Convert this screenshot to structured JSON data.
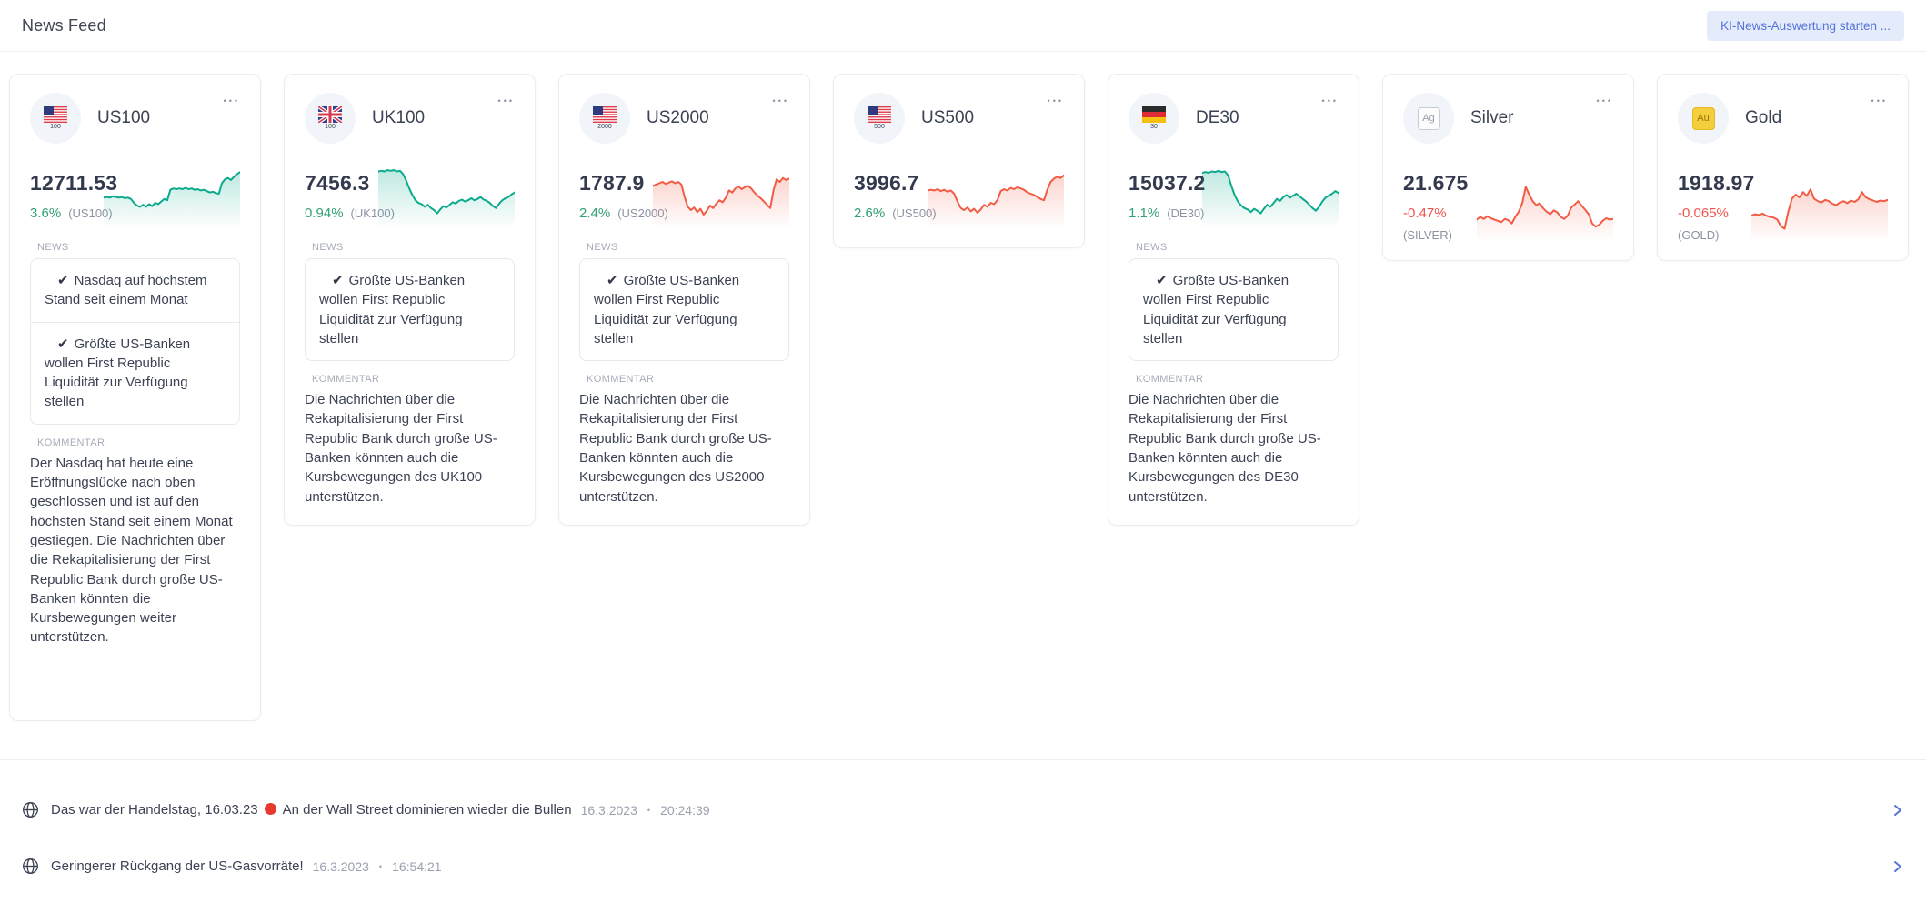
{
  "header": {
    "title": "News Feed",
    "action_button": "KI-News-Auswertung starten ..."
  },
  "labels": {
    "news": "NEWS",
    "kommentar": "KOMMENTAR"
  },
  "colors": {
    "green_line": "#0caa8c",
    "red_line": "#f25c45",
    "green_text": "#33a071",
    "red_text": "#f0544f",
    "accent_blue": "#5673d8",
    "red_dot": "#e8392e"
  },
  "cards": [
    {
      "name": "US100",
      "icon": "us",
      "icon_sub": "100",
      "price": "12711.53",
      "change": "3.6%",
      "direction": "up",
      "symbol": "(US100)",
      "symbol_layout": "inline",
      "spark": 0,
      "news": [
        "Nasdaq auf höchstem Stand seit einem Monat",
        "Größte US-Banken wollen First Republic Liquidität zur Verfügung stellen"
      ],
      "comment": "Der Nasdaq hat heute eine Eröffnungslücke nach oben geschlossen und ist auf den höchsten Stand seit einem Monat gestiegen. Die Nachrichten über die Rekapitalisierung der First Republic Bank durch große US-Banken könnten die Kursbewegungen weiter unterstützen.",
      "extra_space": true
    },
    {
      "name": "UK100",
      "icon": "uk",
      "icon_sub": "100",
      "price": "7456.3",
      "change": "0.94%",
      "direction": "up",
      "symbol": "(UK100)",
      "symbol_layout": "inline",
      "spark": 1,
      "news": [
        "Größte US-Banken wollen First Republic Liquidität zur Verfügung stellen"
      ],
      "comment": "Die Nachrichten über die Rekapitalisierung der First Republic Bank durch große US-Banken könnten auch die Kursbewegungen des UK100 unterstützen.",
      "extra_space": false
    },
    {
      "name": "US2000",
      "icon": "us",
      "icon_sub": "2000",
      "price": "1787.9",
      "change": "2.4%",
      "direction": "up",
      "symbol": "(US2000)",
      "symbol_layout": "inline",
      "spark": 2,
      "news": [
        "Größte US-Banken wollen First Republic Liquidität zur Verfügung stellen"
      ],
      "comment": "Die Nachrichten über die Rekapitalisierung der First Republic Bank durch große US-Banken könnten auch die Kursbewegungen des US2000 unterstützen.",
      "extra_space": false
    },
    {
      "name": "US500",
      "icon": "us",
      "icon_sub": "500",
      "price": "3996.7",
      "change": "2.6%",
      "direction": "up",
      "symbol": "(US500)",
      "symbol_layout": "inline",
      "spark": 3,
      "news": [],
      "comment": "",
      "extra_space": false
    },
    {
      "name": "DE30",
      "icon": "de",
      "icon_sub": "30",
      "price": "15037.2",
      "change": "1.1%",
      "direction": "up",
      "symbol": "(DE30)",
      "symbol_layout": "inline",
      "spark": 4,
      "news": [
        "Größte US-Banken wollen First Republic Liquidität zur Verfügung stellen"
      ],
      "comment": "Die Nachrichten über die Rekapitalisierung der First Republic Bank durch große US-Banken könnten auch die Kursbewegungen des DE30 unterstützen.",
      "extra_space": false
    },
    {
      "name": "Silver",
      "icon": "ag",
      "icon_sub": "",
      "price": "21.675",
      "change": "-0.47%",
      "direction": "down",
      "symbol": "(SILVER)",
      "symbol_layout": "stacked",
      "spark": 5,
      "news": [],
      "comment": "",
      "extra_space": false
    },
    {
      "name": "Gold",
      "icon": "au",
      "icon_sub": "",
      "price": "1918.97",
      "change": "-0.065%",
      "direction": "down",
      "symbol": "(GOLD)",
      "symbol_layout": "stacked",
      "spark": 6,
      "news": [],
      "comment": "",
      "extra_space": false
    }
  ],
  "ticker": [
    {
      "text_before": "Das war der Handelstag, 16.03.23",
      "red_dot": true,
      "text_after": "An der Wall Street dominieren wieder die Bullen",
      "date": "16.3.2023",
      "separator": "•",
      "time": "20:24:39"
    },
    {
      "text_before": "Geringerer Rückgang der US-Gasvorräte!",
      "red_dot": false,
      "text_after": "",
      "date": "16.3.2023",
      "separator": "•",
      "time": "16:54:21"
    }
  ],
  "chart_data": [
    {
      "type": "line",
      "name": "US100 sparkline",
      "color": "#0caa8c",
      "ylim": [
        0,
        100
      ],
      "points": [
        44,
        45,
        44,
        46,
        45,
        44,
        45,
        43,
        44,
        42,
        36,
        32,
        30,
        33,
        30,
        34,
        31,
        36,
        34,
        38,
        42,
        40,
        56,
        58,
        57,
        58,
        57,
        59,
        57,
        58,
        56,
        57,
        55,
        56,
        54,
        52,
        53,
        51,
        50,
        66,
        72,
        74,
        71,
        76,
        80,
        83
      ]
    },
    {
      "type": "line",
      "name": "UK100 sparkline",
      "color": "#0caa8c",
      "ylim": [
        0,
        100
      ],
      "points": [
        84,
        85,
        84,
        86,
        85,
        86,
        84,
        85,
        80,
        70,
        58,
        48,
        40,
        36,
        34,
        30,
        33,
        28,
        25,
        20,
        26,
        31,
        29,
        33,
        37,
        35,
        39,
        41,
        38,
        40,
        43,
        40,
        42,
        45,
        41,
        39,
        36,
        31,
        28,
        35,
        40,
        43,
        45,
        49,
        52
      ]
    },
    {
      "type": "line",
      "name": "US2000 sparkline",
      "color": "#f25c45",
      "ylim": [
        0,
        100
      ],
      "points": [
        62,
        64,
        66,
        68,
        65,
        67,
        69,
        66,
        68,
        64,
        45,
        30,
        25,
        29,
        22,
        27,
        18,
        24,
        32,
        28,
        35,
        40,
        37,
        44,
        55,
        52,
        58,
        61,
        57,
        60,
        62,
        58,
        52,
        47,
        43,
        38,
        33,
        28,
        55,
        72,
        68,
        74,
        71,
        73
      ]
    },
    {
      "type": "line",
      "name": "US500 sparkline",
      "color": "#f25c45",
      "ylim": [
        0,
        100
      ],
      "points": [
        55,
        56,
        55,
        57,
        54,
        56,
        53,
        55,
        50,
        38,
        28,
        25,
        29,
        23,
        27,
        21,
        26,
        33,
        30,
        36,
        34,
        40,
        54,
        57,
        55,
        59,
        57,
        60,
        58,
        56,
        52,
        50,
        48,
        45,
        42,
        40,
        56,
        68,
        73,
        76,
        74,
        78
      ]
    },
    {
      "type": "line",
      "name": "DE30 sparkline",
      "color": "#0caa8c",
      "ylim": [
        0,
        100
      ],
      "points": [
        82,
        83,
        82,
        84,
        83,
        85,
        83,
        84,
        78,
        62,
        48,
        38,
        32,
        28,
        26,
        22,
        27,
        24,
        20,
        27,
        33,
        30,
        36,
        42,
        39,
        45,
        48,
        44,
        47,
        50,
        46,
        42,
        38,
        33,
        28,
        24,
        30,
        38,
        44,
        47,
        50,
        54,
        51
      ]
    },
    {
      "type": "line",
      "name": "Silver sparkline",
      "color": "#f25c45",
      "ylim": [
        0,
        100
      ],
      "points": [
        30,
        34,
        31,
        35,
        32,
        30,
        28,
        26,
        31,
        29,
        24,
        34,
        42,
        55,
        80,
        68,
        58,
        52,
        55,
        47,
        42,
        38,
        44,
        41,
        34,
        31,
        36,
        48,
        53,
        58,
        51,
        45,
        38,
        24,
        19,
        22,
        28,
        32,
        30,
        31
      ]
    },
    {
      "type": "line",
      "name": "Gold sparkline",
      "color": "#f25c45",
      "ylim": [
        0,
        100
      ],
      "points": [
        36,
        38,
        37,
        39,
        36,
        34,
        33,
        30,
        20,
        16,
        42,
        62,
        68,
        64,
        72,
        66,
        76,
        62,
        58,
        56,
        60,
        58,
        54,
        52,
        56,
        58,
        55,
        59,
        57,
        61,
        72,
        64,
        61,
        59,
        57,
        59,
        58,
        60
      ]
    }
  ]
}
